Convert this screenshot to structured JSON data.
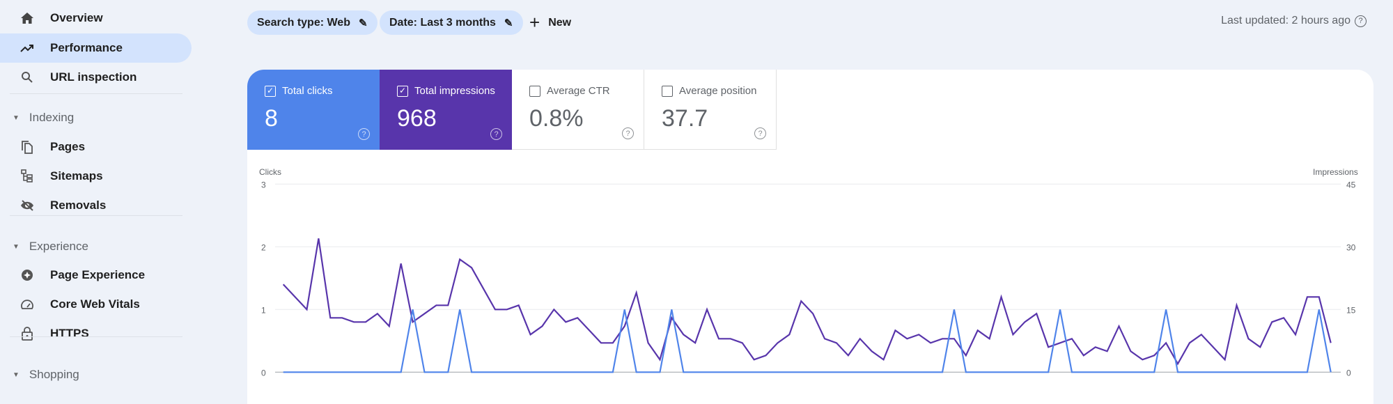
{
  "sidebar": {
    "items": [
      {
        "label": "Overview",
        "icon": "home-icon"
      },
      {
        "label": "Performance",
        "icon": "trending-up-icon",
        "active": true
      },
      {
        "label": "URL inspection",
        "icon": "search-icon"
      }
    ],
    "sections": [
      {
        "title": "Indexing",
        "items": [
          {
            "label": "Pages",
            "icon": "pages-icon"
          },
          {
            "label": "Sitemaps",
            "icon": "sitemap-icon"
          },
          {
            "label": "Removals",
            "icon": "eye-off-icon"
          }
        ]
      },
      {
        "title": "Experience",
        "items": [
          {
            "label": "Page Experience",
            "icon": "page-experience-icon"
          },
          {
            "label": "Core Web Vitals",
            "icon": "speedometer-icon"
          },
          {
            "label": "HTTPS",
            "icon": "lock-icon"
          }
        ]
      },
      {
        "title": "Shopping"
      }
    ]
  },
  "filters": {
    "search_type": "Search type: Web",
    "date": "Date: Last 3 months",
    "new_label": "New"
  },
  "last_updated": "Last updated: 2 hours ago",
  "metrics": [
    {
      "label": "Total clicks",
      "value": "8",
      "checked": true,
      "color": "#4f84ea"
    },
    {
      "label": "Total impressions",
      "value": "968",
      "checked": true,
      "color": "#5835ab"
    },
    {
      "label": "Average CTR",
      "value": "0.8%",
      "checked": false
    },
    {
      "label": "Average position",
      "value": "37.7",
      "checked": false
    }
  ],
  "chart_data": {
    "type": "line",
    "left_axis": {
      "label": "Clicks",
      "ticks": [
        "0",
        "1",
        "2",
        "3"
      ],
      "range": [
        0,
        3
      ]
    },
    "right_axis": {
      "label": "Impressions",
      "ticks": [
        "0",
        "15",
        "30",
        "45"
      ],
      "range": [
        0,
        45
      ]
    },
    "grid": true,
    "series": [
      {
        "name": "Clicks",
        "axis": "left",
        "color": "#4f84ea",
        "values": [
          0,
          0,
          0,
          0,
          0,
          0,
          0,
          0,
          0,
          0,
          0,
          1,
          0,
          0,
          0,
          1,
          0,
          0,
          0,
          0,
          0,
          0,
          0,
          0,
          0,
          0,
          0,
          0,
          0,
          1,
          0,
          0,
          0,
          1,
          0,
          0,
          0,
          0,
          0,
          0,
          0,
          0,
          0,
          0,
          0,
          0,
          0,
          0,
          0,
          0,
          0,
          0,
          0,
          0,
          0,
          0,
          0,
          1,
          0,
          0,
          0,
          0,
          0,
          0,
          0,
          0,
          1,
          0,
          0,
          0,
          0,
          0,
          0,
          0,
          0,
          1,
          0,
          0,
          0,
          0,
          0,
          0,
          0,
          0,
          0,
          0,
          0,
          0,
          1,
          0
        ]
      },
      {
        "name": "Impressions",
        "axis": "right",
        "color": "#5835ab",
        "values": [
          21,
          18,
          15,
          32,
          13,
          13,
          12,
          12,
          14,
          11,
          26,
          12,
          14,
          16,
          16,
          27,
          25,
          20,
          15,
          15,
          16,
          9,
          11,
          15,
          12,
          13,
          10,
          7,
          7,
          11,
          19,
          7,
          3,
          13,
          9,
          7,
          15,
          8,
          8,
          7,
          3,
          4,
          7,
          9,
          17,
          14,
          8,
          7,
          4,
          8,
          5,
          3,
          10,
          8,
          9,
          7,
          8,
          8,
          4,
          10,
          8,
          18,
          9,
          12,
          14,
          6,
          7,
          8,
          4,
          6,
          5,
          11,
          5,
          3,
          4,
          7,
          2,
          7,
          9,
          6,
          3,
          16,
          8,
          6,
          12,
          13,
          9,
          18,
          18,
          7
        ]
      }
    ]
  }
}
